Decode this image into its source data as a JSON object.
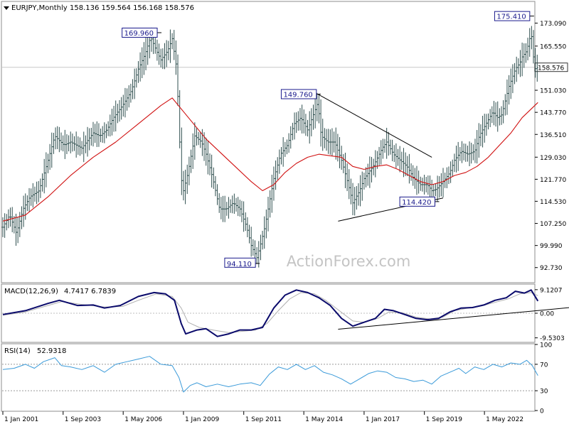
{
  "header": {
    "symbol": "EURJPY,Monthly",
    "ohlc": "158.136 159.564 156.168 158.576"
  },
  "watermark": "ActionForex.com",
  "colors": {
    "price_bar": "#2f4f4f",
    "moving_average": "#d01010",
    "macd_line": "#0a0a6b",
    "macd_signal": "#b0b0b0",
    "rsi_line": "#3a9ad9",
    "current_price_box": "#ffffff",
    "callout_border": "#1a1a8c",
    "trendline": "#000000"
  },
  "chart_data": [
    {
      "type": "bar",
      "panel": "price",
      "ylim": [
        88.0,
        180.0
      ],
      "y_ticks": [
        {
          "value": 173.09,
          "label": "173.090"
        },
        {
          "value": 165.55,
          "label": "165.550"
        },
        {
          "value": 158.576,
          "label": "158.576"
        },
        {
          "value": 151.03,
          "label": "151.030"
        },
        {
          "value": 143.77,
          "label": "143.770"
        },
        {
          "value": 136.51,
          "label": "136.510"
        },
        {
          "value": 129.03,
          "label": "129.030"
        },
        {
          "value": 121.77,
          "label": "121.770"
        },
        {
          "value": 114.53,
          "label": "114.530"
        },
        {
          "value": 107.25,
          "label": "107.250"
        },
        {
          "value": 99.99,
          "label": "99.990"
        },
        {
          "value": 92.73,
          "label": "92.730"
        }
      ],
      "current_price": 158.576,
      "x_range": [
        2001.0,
        2024.5
      ],
      "x_ticks": [
        {
          "value": 2001.0,
          "label": "1 Jan 2001"
        },
        {
          "value": 2003.67,
          "label": "1 Sep 2003"
        },
        {
          "value": 2006.33,
          "label": "1 May 2006"
        },
        {
          "value": 2009.0,
          "label": "1 Jan 2009"
        },
        {
          "value": 2011.67,
          "label": "1 Sep 2011"
        },
        {
          "value": 2014.33,
          "label": "1 May 2014"
        },
        {
          "value": 2017.0,
          "label": "1 Jan 2017"
        },
        {
          "value": 2019.67,
          "label": "1 Sep 2019"
        },
        {
          "value": 2022.33,
          "label": "1 May 2022"
        }
      ],
      "price_path": [
        [
          2001.0,
          106.0
        ],
        [
          2001.3,
          110.0
        ],
        [
          2001.6,
          104.0
        ],
        [
          2001.9,
          112.0
        ],
        [
          2002.2,
          116.0
        ],
        [
          2002.6,
          118.0
        ],
        [
          2003.0,
          128.0
        ],
        [
          2003.3,
          136.0
        ],
        [
          2003.7,
          133.0
        ],
        [
          2004.0,
          134.0
        ],
        [
          2004.5,
          132.0
        ],
        [
          2005.0,
          137.0
        ],
        [
          2005.3,
          136.0
        ],
        [
          2005.6,
          138.0
        ],
        [
          2005.9,
          142.0
        ],
        [
          2006.3,
          146.0
        ],
        [
          2006.7,
          151.0
        ],
        [
          2007.0,
          158.0
        ],
        [
          2007.3,
          163.0
        ],
        [
          2007.55,
          168.5
        ],
        [
          2007.8,
          164.0
        ],
        [
          2008.0,
          161.0
        ],
        [
          2008.3,
          164.0
        ],
        [
          2008.5,
          168.0
        ],
        [
          2008.7,
          158.0
        ],
        [
          2008.9,
          122.0
        ],
        [
          2009.0,
          118.0
        ],
        [
          2009.2,
          124.0
        ],
        [
          2009.5,
          136.0
        ],
        [
          2009.8,
          134.0
        ],
        [
          2010.0,
          130.0
        ],
        [
          2010.3,
          122.0
        ],
        [
          2010.6,
          112.0
        ],
        [
          2010.9,
          112.0
        ],
        [
          2011.2,
          114.0
        ],
        [
          2011.5,
          112.0
        ],
        [
          2011.8,
          106.0
        ],
        [
          2012.0,
          100.0
        ],
        [
          2012.25,
          96.0
        ],
        [
          2012.4,
          100.0
        ],
        [
          2012.6,
          106.0
        ],
        [
          2012.8,
          114.0
        ],
        [
          2013.0,
          122.0
        ],
        [
          2013.3,
          130.0
        ],
        [
          2013.6,
          133.0
        ],
        [
          2013.9,
          140.0
        ],
        [
          2014.2,
          142.0
        ],
        [
          2014.5,
          138.0
        ],
        [
          2014.8,
          144.0
        ],
        [
          2014.95,
          147.0
        ],
        [
          2015.1,
          136.0
        ],
        [
          2015.4,
          134.0
        ],
        [
          2015.7,
          134.0
        ],
        [
          2016.0,
          128.0
        ],
        [
          2016.3,
          120.0
        ],
        [
          2016.5,
          114.0
        ],
        [
          2016.8,
          118.0
        ],
        [
          2017.0,
          122.0
        ],
        [
          2017.4,
          126.0
        ],
        [
          2017.8,
          132.0
        ],
        [
          2018.0,
          134.0
        ],
        [
          2018.3,
          130.0
        ],
        [
          2018.6,
          128.0
        ],
        [
          2018.9,
          126.0
        ],
        [
          2019.2,
          122.0
        ],
        [
          2019.5,
          120.0
        ],
        [
          2019.8,
          120.0
        ],
        [
          2020.0,
          118.0
        ],
        [
          2020.2,
          118.5
        ],
        [
          2020.5,
          121.0
        ],
        [
          2020.8,
          124.0
        ],
        [
          2021.0,
          128.0
        ],
        [
          2021.3,
          131.0
        ],
        [
          2021.6,
          130.0
        ],
        [
          2021.9,
          131.0
        ],
        [
          2022.1,
          136.0
        ],
        [
          2022.4,
          140.0
        ],
        [
          2022.7,
          144.0
        ],
        [
          2022.9,
          142.0
        ],
        [
          2023.1,
          143.0
        ],
        [
          2023.4,
          152.0
        ],
        [
          2023.7,
          158.0
        ],
        [
          2023.9,
          160.0
        ],
        [
          2024.0,
          162.0
        ],
        [
          2024.2,
          164.0
        ],
        [
          2024.4,
          170.0
        ],
        [
          2024.55,
          158.0
        ],
        [
          2024.7,
          158.576
        ]
      ],
      "ma_path": [
        [
          2001.0,
          108.0
        ],
        [
          2002.0,
          110.0
        ],
        [
          2003.0,
          116.0
        ],
        [
          2004.0,
          123.0
        ],
        [
          2005.0,
          129.0
        ],
        [
          2006.0,
          134.0
        ],
        [
          2007.0,
          140.0
        ],
        [
          2008.0,
          146.0
        ],
        [
          2008.5,
          148.5
        ],
        [
          2009.0,
          144.0
        ],
        [
          2010.0,
          135.0
        ],
        [
          2011.0,
          128.0
        ],
        [
          2012.0,
          121.0
        ],
        [
          2012.5,
          118.0
        ],
        [
          2013.0,
          120.0
        ],
        [
          2013.5,
          124.0
        ],
        [
          2014.0,
          127.0
        ],
        [
          2014.5,
          129.0
        ],
        [
          2015.0,
          130.0
        ],
        [
          2015.5,
          129.5
        ],
        [
          2016.0,
          129.0
        ],
        [
          2016.5,
          126.0
        ],
        [
          2017.0,
          125.0
        ],
        [
          2017.5,
          126.0
        ],
        [
          2018.0,
          126.5
        ],
        [
          2018.5,
          125.0
        ],
        [
          2019.0,
          123.0
        ],
        [
          2019.5,
          121.0
        ],
        [
          2020.0,
          120.0
        ],
        [
          2020.5,
          121.0
        ],
        [
          2021.0,
          123.0
        ],
        [
          2021.5,
          124.0
        ],
        [
          2022.0,
          126.0
        ],
        [
          2022.5,
          129.0
        ],
        [
          2023.0,
          133.0
        ],
        [
          2023.5,
          137.0
        ],
        [
          2024.0,
          142.0
        ],
        [
          2024.7,
          147.0
        ]
      ],
      "callouts": [
        {
          "label": "169.960",
          "x": 2007.9,
          "y": 169.96
        },
        {
          "label": "94.110",
          "x": 2012.25,
          "y": 94.11
        },
        {
          "label": "149.760",
          "x": 2014.95,
          "y": 149.76
        },
        {
          "label": "114.420",
          "x": 2020.2,
          "y": 114.42
        },
        {
          "label": "175.410",
          "x": 2024.4,
          "y": 175.41
        }
      ],
      "trendlines": [
        {
          "from": [
            2014.95,
            149.76
          ],
          "to": [
            2020.0,
            129.0
          ]
        },
        {
          "from": [
            2015.85,
            108.0
          ],
          "to": [
            2020.5,
            115.6
          ]
        }
      ]
    },
    {
      "type": "line",
      "panel": "macd",
      "title": "MACD(12,26,9)",
      "values_label": "4.7417 6.7839",
      "ylim": [
        -11.0,
        11.0
      ],
      "y_ticks": [
        {
          "value": 9.1207,
          "label": "9.1207"
        },
        {
          "value": 0.0,
          "label": "0.00"
        },
        {
          "value": -9.5303,
          "label": "-9.5303"
        }
      ],
      "macd_path": [
        [
          2001.0,
          -0.5
        ],
        [
          2002.0,
          1.0
        ],
        [
          2003.0,
          3.8
        ],
        [
          2003.5,
          5.0
        ],
        [
          2004.3,
          3.0
        ],
        [
          2005.0,
          3.2
        ],
        [
          2005.5,
          2.0
        ],
        [
          2006.2,
          3.0
        ],
        [
          2007.0,
          6.5
        ],
        [
          2007.7,
          8.0
        ],
        [
          2008.2,
          7.5
        ],
        [
          2008.6,
          5.0
        ],
        [
          2008.9,
          -4.0
        ],
        [
          2009.1,
          -8.0
        ],
        [
          2009.6,
          -6.5
        ],
        [
          2010.0,
          -6.0
        ],
        [
          2010.5,
          -9.0
        ],
        [
          2011.0,
          -8.0
        ],
        [
          2011.5,
          -6.5
        ],
        [
          2012.0,
          -6.5
        ],
        [
          2012.5,
          -5.5
        ],
        [
          2013.0,
          2.0
        ],
        [
          2013.5,
          7.0
        ],
        [
          2014.0,
          9.0
        ],
        [
          2014.5,
          8.0
        ],
        [
          2015.0,
          6.0
        ],
        [
          2015.5,
          3.0
        ],
        [
          2016.0,
          -2.0
        ],
        [
          2016.5,
          -5.0
        ],
        [
          2017.0,
          -3.5
        ],
        [
          2017.5,
          -2.0
        ],
        [
          2017.9,
          1.5
        ],
        [
          2018.3,
          1.0
        ],
        [
          2018.8,
          -0.5
        ],
        [
          2019.3,
          -2.0
        ],
        [
          2019.8,
          -2.5
        ],
        [
          2020.3,
          -2.0
        ],
        [
          2020.8,
          0.5
        ],
        [
          2021.3,
          2.0
        ],
        [
          2021.8,
          2.2
        ],
        [
          2022.3,
          3.2
        ],
        [
          2022.8,
          5.0
        ],
        [
          2023.3,
          6.0
        ],
        [
          2023.7,
          8.5
        ],
        [
          2024.1,
          7.8
        ],
        [
          2024.4,
          9.0
        ],
        [
          2024.7,
          4.74
        ]
      ],
      "signal_path": [
        [
          2001.0,
          -0.8
        ],
        [
          2002.0,
          0.5
        ],
        [
          2003.0,
          3.0
        ],
        [
          2003.6,
          4.5
        ],
        [
          2004.5,
          3.4
        ],
        [
          2005.5,
          2.4
        ],
        [
          2006.3,
          2.6
        ],
        [
          2007.0,
          5.0
        ],
        [
          2007.8,
          7.5
        ],
        [
          2008.5,
          6.5
        ],
        [
          2008.9,
          2.0
        ],
        [
          2009.2,
          -3.5
        ],
        [
          2009.7,
          -5.5
        ],
        [
          2010.3,
          -6.5
        ],
        [
          2011.0,
          -7.5
        ],
        [
          2011.6,
          -7.0
        ],
        [
          2012.2,
          -6.5
        ],
        [
          2012.7,
          -4.0
        ],
        [
          2013.2,
          1.0
        ],
        [
          2013.7,
          5.5
        ],
        [
          2014.2,
          8.0
        ],
        [
          2014.8,
          7.5
        ],
        [
          2015.3,
          5.0
        ],
        [
          2015.9,
          1.0
        ],
        [
          2016.5,
          -3.0
        ],
        [
          2017.0,
          -3.5
        ],
        [
          2017.6,
          -2.0
        ],
        [
          2018.1,
          0.5
        ],
        [
          2018.7,
          0.2
        ],
        [
          2019.3,
          -1.5
        ],
        [
          2019.9,
          -2.2
        ],
        [
          2020.5,
          -1.5
        ],
        [
          2021.0,
          1.0
        ],
        [
          2021.6,
          2.0
        ],
        [
          2022.2,
          2.8
        ],
        [
          2022.8,
          4.2
        ],
        [
          2023.4,
          5.6
        ],
        [
          2023.9,
          7.5
        ],
        [
          2024.4,
          8.0
        ],
        [
          2024.7,
          6.78
        ]
      ],
      "trendline": {
        "from": [
          2015.85,
          -6.2
        ],
        "to": [
          2026.5,
          2.5
        ]
      }
    },
    {
      "type": "line",
      "panel": "rsi",
      "title": "RSI(14)",
      "values_label": "52.9318",
      "ylim": [
        0,
        100
      ],
      "y_ticks": [
        {
          "value": 100,
          "label": "100"
        },
        {
          "value": 70,
          "label": "70"
        },
        {
          "value": 30,
          "label": "30"
        },
        {
          "value": 0,
          "label": "0"
        }
      ],
      "levels": [
        70,
        30
      ],
      "rsi_path": [
        [
          2001.0,
          62.0
        ],
        [
          2001.5,
          64.0
        ],
        [
          2002.0,
          70.0
        ],
        [
          2002.4,
          64.0
        ],
        [
          2002.8,
          74.0
        ],
        [
          2003.3,
          80.0
        ],
        [
          2003.6,
          68.0
        ],
        [
          2004.0,
          66.0
        ],
        [
          2004.5,
          62.0
        ],
        [
          2005.0,
          68.0
        ],
        [
          2005.5,
          58.0
        ],
        [
          2006.0,
          70.0
        ],
        [
          2006.5,
          74.0
        ],
        [
          2007.0,
          78.0
        ],
        [
          2007.5,
          82.0
        ],
        [
          2008.0,
          70.0
        ],
        [
          2008.5,
          68.0
        ],
        [
          2008.8,
          50.0
        ],
        [
          2009.0,
          28.0
        ],
        [
          2009.3,
          38.0
        ],
        [
          2009.6,
          42.0
        ],
        [
          2010.0,
          36.0
        ],
        [
          2010.5,
          40.0
        ],
        [
          2011.0,
          36.0
        ],
        [
          2011.5,
          40.0
        ],
        [
          2012.0,
          42.0
        ],
        [
          2012.4,
          38.0
        ],
        [
          2012.8,
          55.0
        ],
        [
          2013.2,
          66.0
        ],
        [
          2013.6,
          62.0
        ],
        [
          2014.0,
          70.0
        ],
        [
          2014.4,
          62.0
        ],
        [
          2014.8,
          68.0
        ],
        [
          2015.2,
          58.0
        ],
        [
          2015.6,
          54.0
        ],
        [
          2016.0,
          48.0
        ],
        [
          2016.4,
          40.0
        ],
        [
          2016.8,
          48.0
        ],
        [
          2017.2,
          56.0
        ],
        [
          2017.6,
          60.0
        ],
        [
          2018.0,
          58.0
        ],
        [
          2018.4,
          50.0
        ],
        [
          2018.8,
          48.0
        ],
        [
          2019.2,
          44.0
        ],
        [
          2019.6,
          46.0
        ],
        [
          2020.0,
          40.0
        ],
        [
          2020.4,
          52.0
        ],
        [
          2020.8,
          58.0
        ],
        [
          2021.2,
          64.0
        ],
        [
          2021.5,
          56.0
        ],
        [
          2021.9,
          66.0
        ],
        [
          2022.3,
          62.0
        ],
        [
          2022.7,
          70.0
        ],
        [
          2023.1,
          66.0
        ],
        [
          2023.5,
          72.0
        ],
        [
          2023.9,
          70.0
        ],
        [
          2024.2,
          76.0
        ],
        [
          2024.45,
          68.0
        ],
        [
          2024.7,
          52.93
        ]
      ]
    }
  ]
}
